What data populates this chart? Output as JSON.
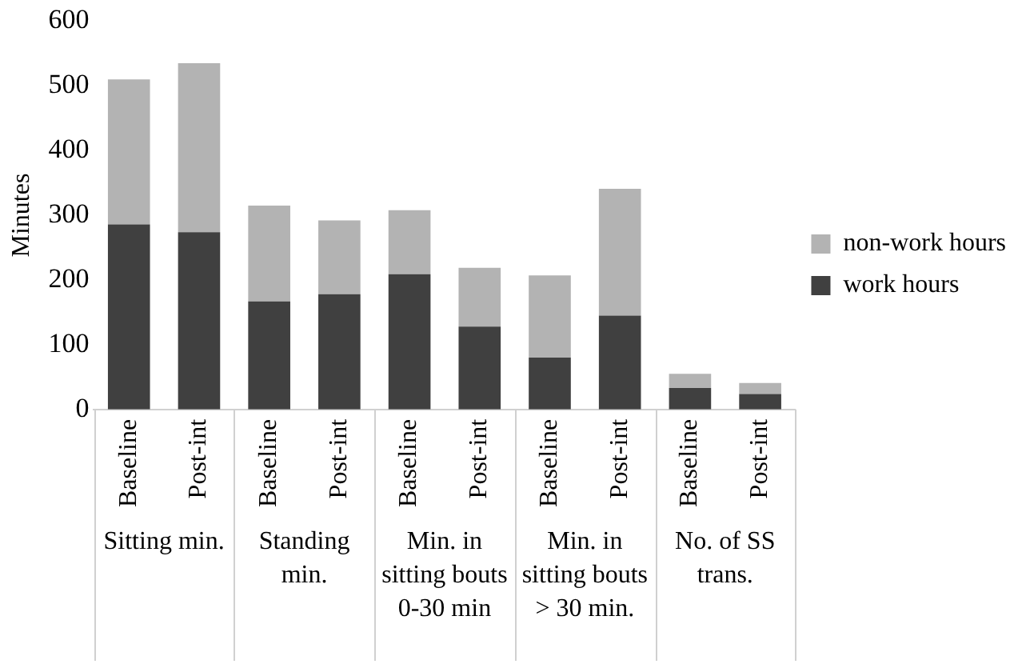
{
  "chart_data": {
    "type": "bar",
    "stacked": true,
    "ylabel": "Minutes",
    "categories": [
      "Baseline",
      "Post-int",
      "Baseline",
      "Post-int",
      "Baseline",
      "Post-int",
      "Baseline",
      "Post-int",
      "Baseline",
      "Post-int"
    ],
    "series": [
      {
        "name": "work hours",
        "color": "#404040",
        "values": [
          286,
          274,
          167,
          178,
          209,
          128,
          80,
          145,
          33,
          24
        ]
      },
      {
        "name": "non-work hours",
        "color": "#b3b3b3",
        "values": [
          224,
          261,
          148,
          114,
          99,
          91,
          127,
          196,
          22,
          17
        ]
      }
    ],
    "ylim": [
      0,
      600
    ],
    "yticks": [
      0,
      100,
      200,
      300,
      400,
      500,
      600
    ],
    "grid": false,
    "legend": "right",
    "annotations": [
      "Sitting min.",
      "Standing min.",
      "Min. in sitting bouts 0-30 min",
      "Min. in sitting bouts > 30 min.",
      "No. of SS trans."
    ]
  }
}
